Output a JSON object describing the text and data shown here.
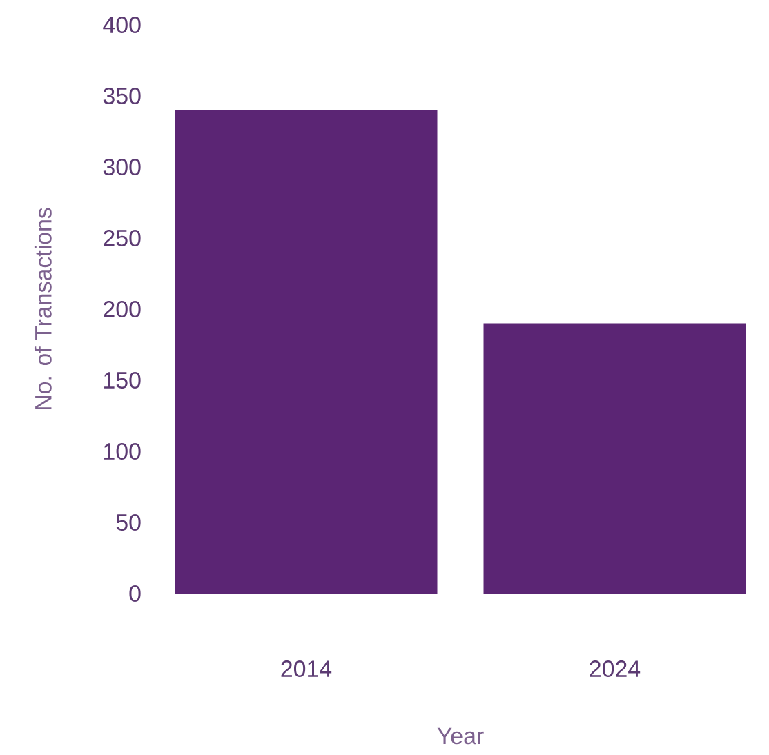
{
  "chart_data": {
    "type": "bar",
    "xlabel": "Year",
    "ylabel": "No. of Transactions",
    "categories": [
      "2014",
      "2024"
    ],
    "values": [
      340,
      190
    ],
    "color": "#5b2574",
    "ylim": [
      0,
      400
    ],
    "yticks": [
      0,
      50,
      100,
      150,
      200,
      250,
      300,
      350,
      400
    ]
  }
}
